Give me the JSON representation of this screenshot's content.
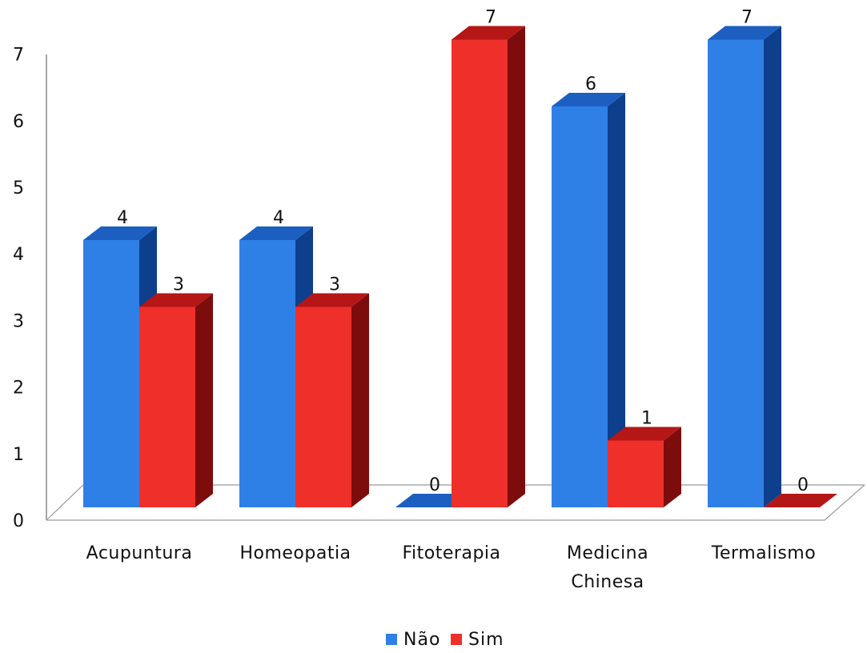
{
  "chart_data": {
    "type": "bar",
    "categories": [
      [
        "Acupuntura"
      ],
      [
        "Homeopatia"
      ],
      [
        "Fitoterapia"
      ],
      [
        "Medicina",
        "Chinesa"
      ],
      [
        "Termalismo"
      ]
    ],
    "series": [
      {
        "name": "Não",
        "values": [
          4,
          4,
          0,
          6,
          7
        ],
        "color": "#2f80e6",
        "side_color": "#0e3f8c",
        "top_color": "#1c5fc0"
      },
      {
        "name": "Sim",
        "values": [
          3,
          3,
          7,
          1,
          0
        ],
        "color": "#ee2f2a",
        "side_color": "#7d0c0c",
        "top_color": "#b51616"
      }
    ],
    "y_ticks": [
      0,
      1,
      2,
      3,
      4,
      5,
      6,
      7
    ],
    "ylim": [
      0,
      7
    ],
    "title": "",
    "xlabel": "",
    "ylabel": "",
    "grid": false,
    "legend_position": "bottom",
    "three_d": true
  }
}
